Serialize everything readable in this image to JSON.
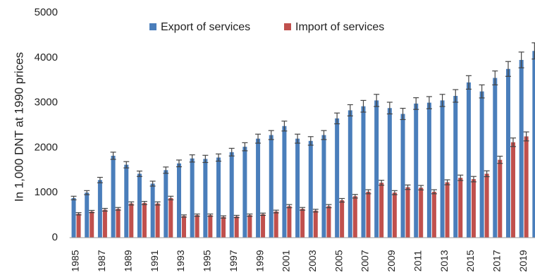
{
  "chart_data": {
    "type": "bar",
    "y_label": "In 1,000 DNT at 1990 prices",
    "categories": [
      "1985",
      null,
      "1987",
      null,
      "1989",
      null,
      "1991",
      null,
      "1993",
      null,
      "1995",
      null,
      "1997",
      null,
      "1999",
      null,
      "2001",
      null,
      "2003",
      null,
      "2005",
      null,
      "2007",
      null,
      "2009",
      null,
      "2011",
      null,
      "2013",
      null,
      "2015",
      null,
      "2017",
      null,
      "2019",
      null
    ],
    "series": [
      {
        "name": "Export of services",
        "color": "#4a7ebb",
        "values": [
          880,
          1000,
          1280,
          1820,
          1620,
          1420,
          1200,
          1500,
          1650,
          1760,
          1750,
          1780,
          1900,
          2020,
          2200,
          2280,
          2480,
          2200,
          2150,
          2280,
          2650,
          2830,
          2920,
          3050,
          2880,
          2750,
          2980,
          3000,
          3050,
          3150,
          3450,
          3250,
          3550,
          3750,
          3950,
          4150
        ],
        "errors": [
          40,
          45,
          60,
          80,
          70,
          60,
          55,
          70,
          75,
          80,
          80,
          80,
          85,
          90,
          100,
          100,
          110,
          100,
          95,
          100,
          120,
          125,
          130,
          135,
          130,
          125,
          130,
          135,
          135,
          140,
          150,
          145,
          155,
          165,
          175,
          180
        ]
      },
      {
        "name": "Import of services",
        "color": "#c0504d",
        "values": [
          530,
          580,
          620,
          640,
          760,
          770,
          760,
          880,
          480,
          500,
          500,
          460,
          470,
          500,
          520,
          580,
          700,
          640,
          600,
          700,
          830,
          920,
          1020,
          1220,
          1000,
          1120,
          1110,
          1020,
          1230,
          1330,
          1300,
          1420,
          1730,
          2120,
          2250,
          null
        ],
        "errors": [
          25,
          25,
          30,
          30,
          35,
          35,
          35,
          40,
          25,
          25,
          25,
          25,
          25,
          25,
          25,
          30,
          35,
          30,
          30,
          35,
          40,
          40,
          45,
          55,
          45,
          50,
          50,
          45,
          55,
          60,
          60,
          65,
          80,
          95,
          100,
          null
        ]
      }
    ],
    "ylim": [
      0,
      5000
    ],
    "yticks": [
      0,
      1000,
      2000,
      3000,
      4000,
      5000
    ],
    "grid": false,
    "legend": "top"
  }
}
